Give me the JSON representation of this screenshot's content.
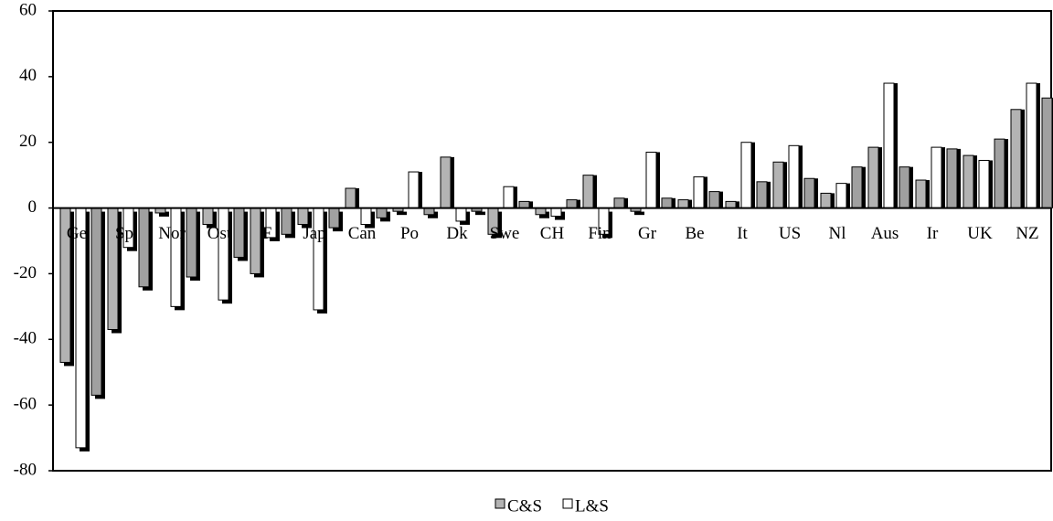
{
  "chart_data": {
    "type": "bar",
    "categories": [
      "Ge",
      "Sp",
      "Nor",
      "Ost",
      "F",
      "Jap",
      "Can",
      "Po",
      "Dk",
      "Swe",
      "CH",
      "Fin",
      "Gr",
      "Be",
      "It",
      "US",
      "Nl",
      "Aus",
      "Ir",
      "UK",
      "NZ"
    ],
    "series": [
      {
        "name": "C&S",
        "color": "#b3b3b3",
        "values": [
          -47,
          -37,
          -1.5,
          -5,
          -20,
          -5,
          6,
          -1,
          15.5,
          -8,
          -2,
          10,
          -1,
          2.5,
          2,
          14,
          4.5,
          18.5,
          8.5,
          16,
          30
        ]
      },
      {
        "name": "L&S",
        "color": "#ffffff",
        "values": [
          -73,
          -12,
          -30,
          -28,
          -9,
          -31,
          -5,
          11,
          -4,
          6.5,
          -2.5,
          -8,
          17,
          9.5,
          20,
          19,
          7.5,
          38,
          18.5,
          14.5,
          38
        ]
      },
      {
        "color": "#a0a0a0",
        "values": [
          -57,
          -24,
          -21,
          -15,
          -8,
          -6,
          -3,
          -2,
          -1,
          2,
          2.5,
          3,
          3,
          5,
          8,
          9,
          12.5,
          12.5,
          18,
          21,
          33.5
        ]
      }
    ],
    "ylim": [
      -80,
      60
    ],
    "yticks": [
      -80,
      -60,
      -40,
      -20,
      0,
      20,
      40,
      60
    ]
  }
}
